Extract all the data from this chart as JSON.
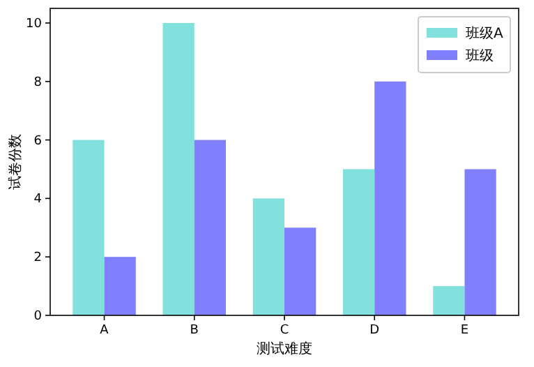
{
  "chart_data": {
    "type": "bar",
    "xlabel": "测试难度",
    "ylabel": "试卷份数",
    "categories": [
      "A",
      "B",
      "C",
      "D",
      "E"
    ],
    "series": [
      {
        "name": "班级A",
        "color": "#82e0dd",
        "values": [
          6,
          10,
          4,
          5,
          1
        ]
      },
      {
        "name": "班级",
        "color": "#8080ff",
        "values": [
          2,
          6,
          3,
          8,
          5
        ]
      }
    ],
    "ylim": [
      0,
      10.5
    ],
    "yticks": [
      0,
      2,
      4,
      6,
      8,
      10
    ],
    "legend": "top right"
  }
}
